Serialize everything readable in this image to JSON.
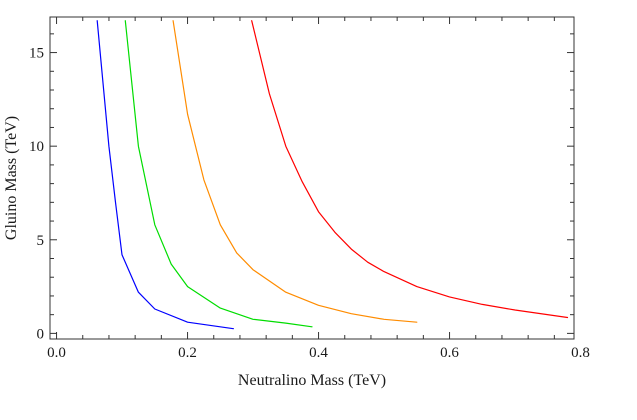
{
  "chart_data": {
    "type": "line",
    "title": "",
    "xlabel": "Neutralino Mass (TeV)",
    "ylabel": "Gluino Mass (TeV)",
    "xlim": [
      -0.01,
      0.79
    ],
    "ylim": [
      -0.3,
      16.9
    ],
    "x_major_ticks": [
      0.0,
      0.2,
      0.4,
      0.6,
      0.8
    ],
    "x_tick_labels": [
      "0.0",
      "0.2",
      "0.4",
      "0.6",
      "0.8"
    ],
    "x_minor_step": 0.04,
    "y_major_ticks": [
      0,
      5,
      10,
      15
    ],
    "y_tick_labels": [
      "0",
      "5",
      "10",
      "15"
    ],
    "y_minor_step": 1,
    "grid": false,
    "legend": "none",
    "series": [
      {
        "name": "blue",
        "color": "#0000ff",
        "x": [
          0.062,
          0.08,
          0.09,
          0.1,
          0.125,
          0.15,
          0.2,
          0.27
        ],
        "y": [
          16.7,
          10.0,
          7.0,
          4.2,
          2.2,
          1.3,
          0.6,
          0.25
        ]
      },
      {
        "name": "green",
        "color": "#00dd00",
        "x": [
          0.105,
          0.125,
          0.15,
          0.175,
          0.2,
          0.25,
          0.3,
          0.35,
          0.39
        ],
        "y": [
          16.7,
          10.0,
          5.8,
          3.7,
          2.5,
          1.35,
          0.75,
          0.55,
          0.35
        ]
      },
      {
        "name": "orange",
        "color": "#ff8c00",
        "x": [
          0.178,
          0.2,
          0.225,
          0.25,
          0.275,
          0.3,
          0.35,
          0.4,
          0.45,
          0.5,
          0.55
        ],
        "y": [
          16.7,
          11.7,
          8.2,
          5.8,
          4.3,
          3.4,
          2.2,
          1.5,
          1.05,
          0.75,
          0.6
        ]
      },
      {
        "name": "red",
        "color": "#ff0000",
        "x": [
          0.298,
          0.325,
          0.35,
          0.375,
          0.4,
          0.425,
          0.45,
          0.475,
          0.5,
          0.55,
          0.6,
          0.65,
          0.7,
          0.78
        ],
        "y": [
          16.7,
          12.8,
          10.0,
          8.1,
          6.5,
          5.4,
          4.5,
          3.8,
          3.3,
          2.5,
          1.95,
          1.55,
          1.25,
          0.85
        ]
      }
    ]
  }
}
